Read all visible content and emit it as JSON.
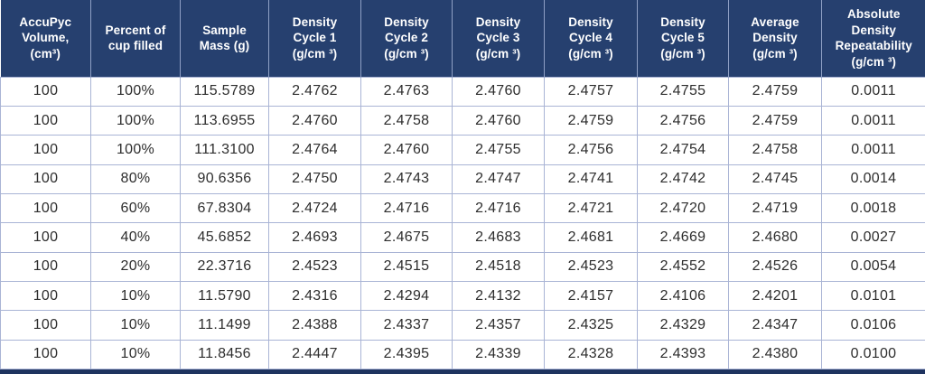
{
  "table": {
    "headers": [
      [
        "AccuPyc",
        "Volume,",
        "(cm³)"
      ],
      [
        "Percent of",
        "cup filled"
      ],
      [
        "Sample",
        "Mass (g)"
      ],
      [
        "Density",
        "Cycle 1",
        "(g/cm ³)"
      ],
      [
        "Density",
        "Cycle 2",
        "(g/cm ³)"
      ],
      [
        "Density",
        "Cycle 3",
        "(g/cm ³)"
      ],
      [
        "Density",
        "Cycle 4",
        "(g/cm ³)"
      ],
      [
        "Density",
        "Cycle 5",
        "(g/cm ³)"
      ],
      [
        "Average",
        "Density",
        "(g/cm ³)"
      ],
      [
        "Absolute",
        "Density",
        "Repeatability",
        "(g/cm ³)"
      ]
    ],
    "rows": [
      [
        "100",
        "100%",
        "115.5789",
        "2.4762",
        "2.4763",
        "2.4760",
        "2.4757",
        "2.4755",
        "2.4759",
        "0.0011"
      ],
      [
        "100",
        "100%",
        "113.6955",
        "2.4760",
        "2.4758",
        "2.4760",
        "2.4759",
        "2.4756",
        "2.4759",
        "0.0011"
      ],
      [
        "100",
        "100%",
        "111.3100",
        "2.4764",
        "2.4760",
        "2.4755",
        "2.4756",
        "2.4754",
        "2.4758",
        "0.0011"
      ],
      [
        "100",
        "80%",
        "90.6356",
        "2.4750",
        "2.4743",
        "2.4747",
        "2.4741",
        "2.4742",
        "2.4745",
        "0.0014"
      ],
      [
        "100",
        "60%",
        "67.8304",
        "2.4724",
        "2.4716",
        "2.4716",
        "2.4721",
        "2.4720",
        "2.4719",
        "0.0018"
      ],
      [
        "100",
        "40%",
        "45.6852",
        "2.4693",
        "2.4675",
        "2.4683",
        "2.4681",
        "2.4669",
        "2.4680",
        "0.0027"
      ],
      [
        "100",
        "20%",
        "22.3716",
        "2.4523",
        "2.4515",
        "2.4518",
        "2.4523",
        "2.4552",
        "2.4526",
        "0.0054"
      ],
      [
        "100",
        "10%",
        "11.5790",
        "2.4316",
        "2.4294",
        "2.4132",
        "2.4157",
        "2.4106",
        "2.4201",
        "0.0101"
      ],
      [
        "100",
        "10%",
        "11.1499",
        "2.4388",
        "2.4337",
        "2.4357",
        "2.4325",
        "2.4329",
        "2.4347",
        "0.0106"
      ],
      [
        "100",
        "10%",
        "11.8456",
        "2.4447",
        "2.4395",
        "2.4339",
        "2.4328",
        "2.4393",
        "2.4380",
        "0.0100"
      ]
    ]
  },
  "colors": {
    "header_bg": "#26406F",
    "header_text": "#FFFFFF",
    "header_divider": "#8FA0C5",
    "grid_line": "#A9B4D5",
    "body_text": "#2D2D2D",
    "bottom_bar": "#1E335F",
    "row_bg": "#FFFFFF"
  },
  "chart_data": {
    "type": "table",
    "title": "AccuPyc density repeatability vs. percent of cup filled",
    "columns": [
      "AccuPyc Volume, (cm³)",
      "Percent of cup filled",
      "Sample Mass (g)",
      "Density Cycle 1 (g/cm ³)",
      "Density Cycle 2 (g/cm ³)",
      "Density Cycle 3 (g/cm ³)",
      "Density Cycle 4 (g/cm ³)",
      "Density Cycle 5 (g/cm ³)",
      "Average Density (g/cm ³)",
      "Absolute Density Repeatability (g/cm ³)"
    ],
    "rows": [
      [
        100,
        "100%",
        115.5789,
        2.4762,
        2.4763,
        2.476,
        2.4757,
        2.4755,
        2.4759,
        0.0011
      ],
      [
        100,
        "100%",
        113.6955,
        2.476,
        2.4758,
        2.476,
        2.4759,
        2.4756,
        2.4759,
        0.0011
      ],
      [
        100,
        "100%",
        111.31,
        2.4764,
        2.476,
        2.4755,
        2.4756,
        2.4754,
        2.4758,
        0.0011
      ],
      [
        100,
        "80%",
        90.6356,
        2.475,
        2.4743,
        2.4747,
        2.4741,
        2.4742,
        2.4745,
        0.0014
      ],
      [
        100,
        "60%",
        67.8304,
        2.4724,
        2.4716,
        2.4716,
        2.4721,
        2.472,
        2.4719,
        0.0018
      ],
      [
        100,
        "40%",
        45.6852,
        2.4693,
        2.4675,
        2.4683,
        2.4681,
        2.4669,
        2.468,
        0.0027
      ],
      [
        100,
        "20%",
        22.3716,
        2.4523,
        2.4515,
        2.4518,
        2.4523,
        2.4552,
        2.4526,
        0.0054
      ],
      [
        100,
        "10%",
        11.579,
        2.4316,
        2.4294,
        2.4132,
        2.4157,
        2.4106,
        2.4201,
        0.0101
      ],
      [
        100,
        "10%",
        11.1499,
        2.4388,
        2.4337,
        2.4357,
        2.4325,
        2.4329,
        2.4347,
        0.0106
      ],
      [
        100,
        "10%",
        11.8456,
        2.4447,
        2.4395,
        2.4339,
        2.4328,
        2.4393,
        2.438,
        0.01
      ]
    ]
  }
}
